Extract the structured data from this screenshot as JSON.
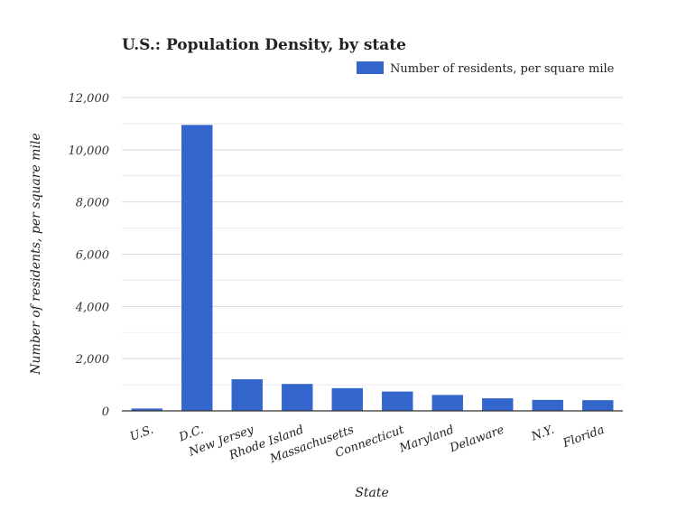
{
  "chart_data": {
    "type": "bar",
    "title": "U.S.: Population Density, by state",
    "xlabel": "State",
    "ylabel": "Number of residents, per square mile",
    "categories": [
      "U.S.",
      "D.C.",
      "New Jersey",
      "Rhode Island",
      "Massachusetts",
      "Connecticut",
      "Maryland",
      "Delaware",
      "N.Y.",
      "Florida"
    ],
    "series": [
      {
        "name": "Number of residents, per square mile",
        "color": "#3366cc",
        "values": [
          90,
          10950,
          1210,
          1030,
          870,
          740,
          610,
          480,
          420,
          410
        ]
      }
    ],
    "ylim": [
      0,
      12000
    ],
    "yticks": [
      0,
      2000,
      4000,
      6000,
      8000,
      10000,
      12000
    ],
    "ytick_labels": [
      "0",
      "2,000",
      "4,000",
      "6,000",
      "8,000",
      "10,000",
      "12,000"
    ],
    "grid": true,
    "legend_position": "top-right"
  }
}
